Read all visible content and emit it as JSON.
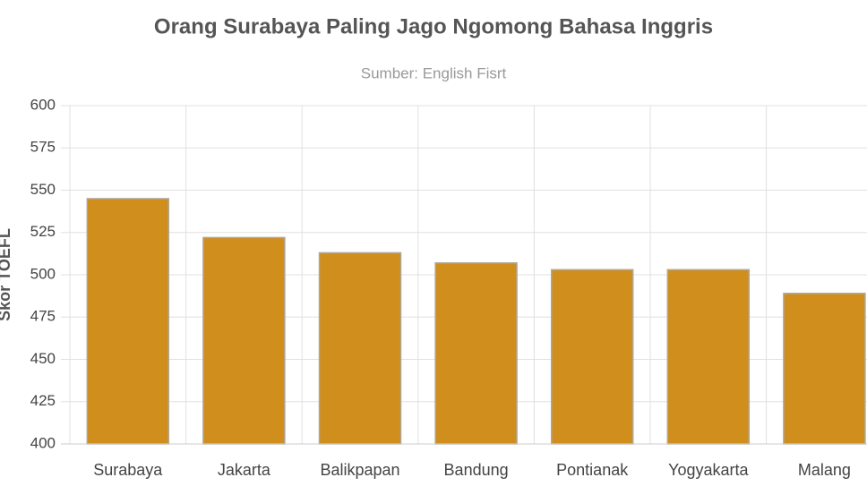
{
  "chart_data": {
    "type": "bar",
    "title": "Orang Surabaya Paling Jago Ngomong Bahasa Inggris",
    "subtitle": "Sumber: English Fisrt",
    "y_label": "Skor TOEFL",
    "categories": [
      "Surabaya",
      "Jakarta",
      "Balikpapan",
      "Bandung",
      "Pontianak",
      "Yogyakarta",
      "Malang"
    ],
    "values": [
      545,
      522,
      513,
      507,
      503,
      503,
      489
    ],
    "color": "#d08e1d",
    "ylim": [
      400,
      600
    ],
    "yticks": [
      400,
      425,
      450,
      475,
      500,
      525,
      550,
      575,
      600
    ],
    "grid": true
  }
}
